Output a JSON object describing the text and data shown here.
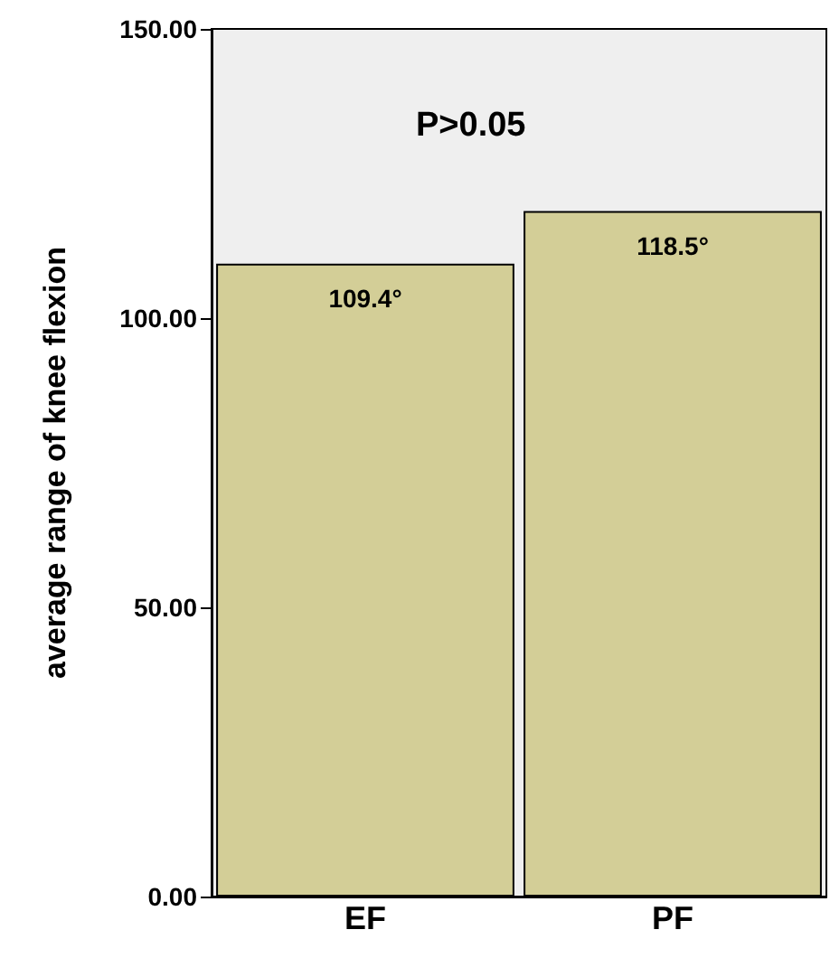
{
  "chart_data": {
    "type": "bar",
    "ylabel": "average range of knee flexion",
    "categories": [
      "EF",
      "PF"
    ],
    "values": [
      109.4,
      118.5
    ],
    "value_labels": [
      "109.4°",
      "118.5°"
    ],
    "color": "#d3ce97",
    "ylim": [
      0,
      150
    ],
    "yticks": [
      {
        "value": 0,
        "label": "0.00"
      },
      {
        "value": 50,
        "label": "50.00"
      },
      {
        "value": 100,
        "label": "100.00"
      },
      {
        "value": 150,
        "label": "150.00"
      }
    ],
    "annotations": [
      "P>0.05"
    ],
    "grid": false
  }
}
